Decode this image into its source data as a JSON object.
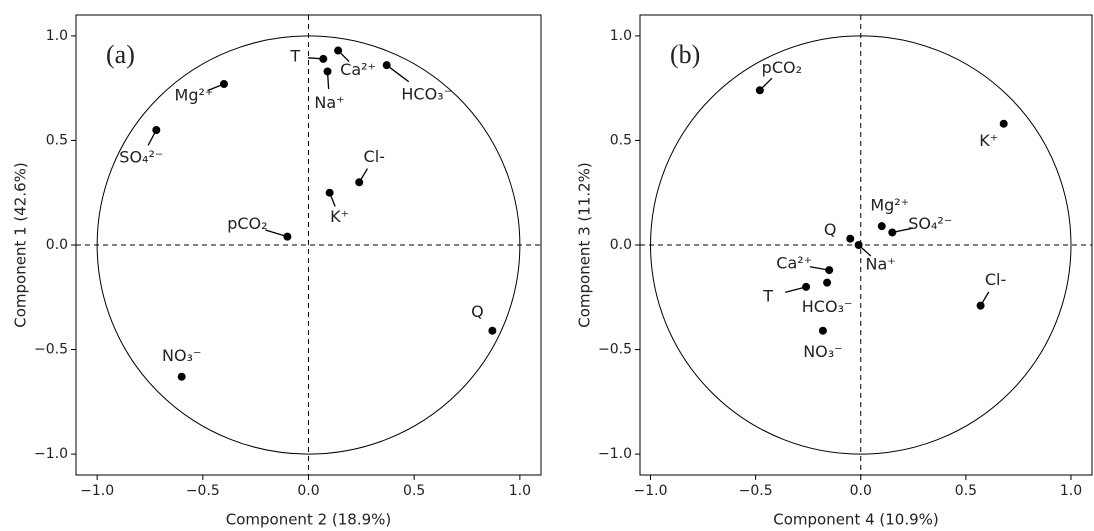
{
  "chart_data": [
    {
      "type": "scatter",
      "panel_label": "(a)",
      "x_label": "Component 2 (18.9%)",
      "y_label": "Component 1 (42.6%)",
      "labels": [
        "T",
        "Ca²⁺",
        "Na⁺",
        "HCO₃⁻",
        "Mg²⁺",
        "SO₄²⁻",
        "Cl-",
        "K⁺",
        "pCO₂",
        "Q",
        "NO₃⁻"
      ],
      "x": [
        0.07,
        0.14,
        0.09,
        0.37,
        -0.4,
        -0.72,
        0.24,
        0.1,
        -0.1,
        0.87,
        -0.6
      ],
      "y": [
        0.89,
        0.93,
        0.83,
        0.86,
        0.77,
        0.55,
        0.3,
        0.25,
        0.04,
        -0.41,
        -0.63
      ],
      "color": "#000000",
      "xlim": [
        -1.1,
        1.1
      ],
      "ylim": [
        -1.1,
        1.1
      ],
      "xticks": [
        {
          "value": -1,
          "label": "−1.0"
        },
        {
          "value": -0.5,
          "label": "−0.5"
        },
        {
          "value": 0,
          "label": "0.0"
        },
        0.5,
        {
          "value": 1,
          "label": "1.0"
        }
      ],
      "yticks": [
        {
          "value": -1,
          "label": "−1.0"
        },
        {
          "value": -0.5,
          "label": "−0.5"
        },
        {
          "value": 0,
          "label": "0.0"
        },
        0.5,
        {
          "value": 1,
          "label": "1.0"
        }
      ]
    },
    {
      "type": "scatter",
      "panel_label": "(b)",
      "x_label": "Component 4 (10.9%)",
      "y_label": "Component 3 (11.2%)",
      "labels": [
        "pCO₂",
        "K⁺",
        "Mg²⁺",
        "SO₄²⁻",
        "Q",
        "Na⁺",
        "Ca²⁺",
        "HCO₃⁻",
        "T",
        "Cl-",
        "NO₃⁻"
      ],
      "x": [
        -0.48,
        0.68,
        0.1,
        0.15,
        -0.05,
        -0.01,
        -0.15,
        -0.16,
        -0.26,
        0.57,
        -0.18
      ],
      "y": [
        0.74,
        0.58,
        0.09,
        0.06,
        0.03,
        0.0,
        -0.12,
        -0.18,
        -0.2,
        -0.29,
        -0.41
      ],
      "color": "#000000",
      "xlim": [
        -1.05,
        1.1
      ],
      "ylim": [
        -1.1,
        1.1
      ],
      "xticks": [
        {
          "value": -1,
          "label": "−1.0"
        },
        {
          "value": -0.5,
          "label": "−0.5"
        },
        {
          "value": 0,
          "label": "0.0"
        },
        0.5,
        {
          "value": 1,
          "label": "1.0"
        }
      ],
      "yticks": [
        {
          "value": -1,
          "label": "−1.0"
        },
        {
          "value": -0.5,
          "label": "−0.5"
        },
        {
          "value": 0,
          "label": "0.0"
        },
        0.5,
        {
          "value": 1,
          "label": "1.0"
        }
      ]
    }
  ]
}
